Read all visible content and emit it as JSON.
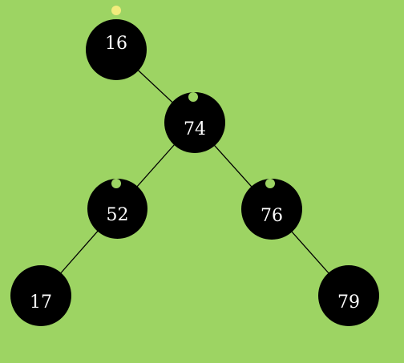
{
  "colors": {
    "background": "#9dd463",
    "node_fill": "#000000",
    "node_text": "#ffffff",
    "edge": "#000000",
    "root_marker": "#f2ec7c",
    "child_marker": "#9dd463"
  },
  "tree": {
    "nodes": [
      {
        "id": "n16",
        "value": "16",
        "marker": "root"
      },
      {
        "id": "n74",
        "value": "74",
        "marker": "child"
      },
      {
        "id": "n52",
        "value": "52",
        "marker": "child"
      },
      {
        "id": "n76",
        "value": "76",
        "marker": "child"
      },
      {
        "id": "n17",
        "value": "17",
        "marker": "none"
      },
      {
        "id": "n79",
        "value": "79",
        "marker": "none"
      }
    ],
    "edges": [
      [
        "n16",
        "n74"
      ],
      [
        "n74",
        "n52"
      ],
      [
        "n74",
        "n76"
      ],
      [
        "n52",
        "n17"
      ],
      [
        "n76",
        "n79"
      ]
    ]
  }
}
